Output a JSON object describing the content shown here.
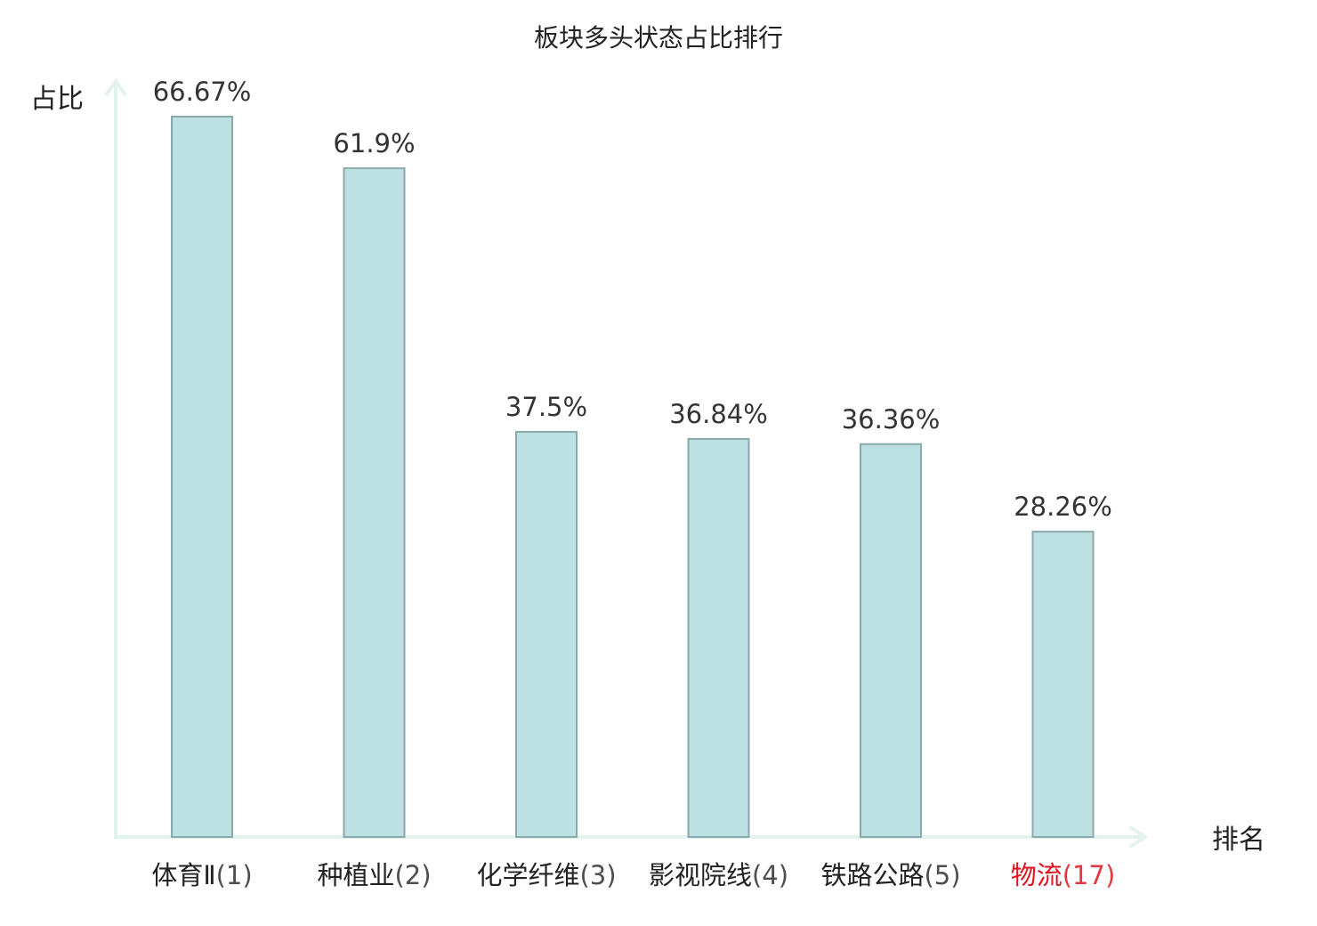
{
  "chart_data": {
    "type": "bar",
    "title": "板块多头状态占比排行",
    "ylabel": "占比",
    "xlabel": "排名",
    "categories": [
      {
        "name": "体育Ⅱ",
        "rank": "(1)",
        "highlight": false
      },
      {
        "name": "种植业",
        "rank": "(2)",
        "highlight": false
      },
      {
        "name": "化学纤维",
        "rank": "(3)",
        "highlight": false
      },
      {
        "name": "影视院线",
        "rank": "(4)",
        "highlight": false
      },
      {
        "name": "铁路公路",
        "rank": "(5)",
        "highlight": false
      },
      {
        "name": "物流",
        "rank": "(17)",
        "highlight": true
      }
    ],
    "values": [
      66.67,
      61.9,
      37.5,
      36.84,
      36.36,
      28.26
    ],
    "value_labels": [
      "66.67%",
      "61.9%",
      "37.5%",
      "36.84%",
      "36.36%",
      "28.26%"
    ],
    "ylim": [
      0,
      66.67
    ],
    "grid": false,
    "colors": {
      "bar_fill": "#bde0e3",
      "bar_stroke": "#8aa9ab",
      "axis": "#e2f3ef",
      "label": "#222222",
      "highlight_label": "#e0141e"
    }
  }
}
